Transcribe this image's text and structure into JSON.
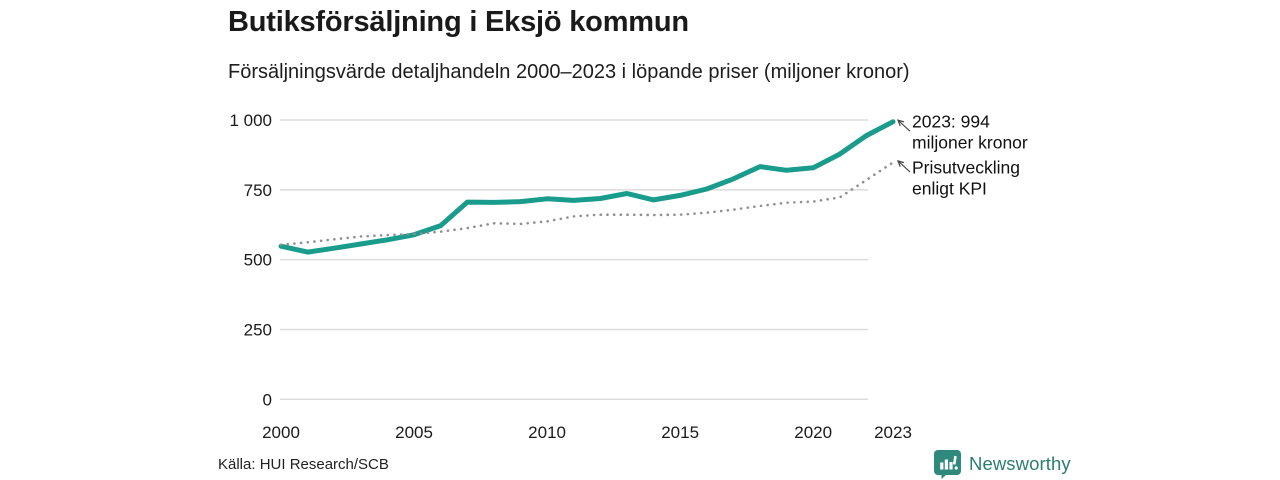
{
  "header": {
    "title": "Butiksförsäljning i Eksjö kommun",
    "subtitle": "Försäljningsvärde detaljhandeln 2000–2023 i löpande priser (miljoner kronor)"
  },
  "footer": {
    "source": "Källa: HUI Research/SCB",
    "brand": "Newsworthy"
  },
  "colors": {
    "sales_line": "#1a9c8c",
    "kpi_line": "#8f8f8f",
    "grid": "#dcdcdc",
    "axis_text": "#1a1a1a",
    "annotation_text": "#111111",
    "annotation_arrow": "#444444",
    "logo_icon": "#2f897c",
    "logo_text": "#2c7d72"
  },
  "chart_data": {
    "type": "line",
    "title": "Butiksförsäljning i Eksjö kommun",
    "subtitle": "Försäljningsvärde detaljhandeln 2000–2023 i löpande priser (miljoner kronor)",
    "xlabel": "",
    "ylabel": "miljoner kronor",
    "x": [
      2000,
      2001,
      2002,
      2003,
      2004,
      2005,
      2006,
      2007,
      2008,
      2009,
      2010,
      2011,
      2012,
      2013,
      2014,
      2015,
      2016,
      2017,
      2018,
      2019,
      2020,
      2021,
      2022,
      2023
    ],
    "series": [
      {
        "name": "Försäljningsvärde detaljhandeln (löpande priser)",
        "style": "solid",
        "color": "#1a9c8c",
        "values": [
          548,
          527,
          541,
          556,
          571,
          589,
          622,
          706,
          705,
          708,
          718,
          712,
          719,
          737,
          714,
          730,
          753,
          789,
          833,
          820,
          829,
          878,
          944,
          994
        ]
      },
      {
        "name": "Prisutveckling enligt KPI",
        "style": "dotted",
        "color": "#8f8f8f",
        "values": [
          553,
          562,
          573,
          583,
          588,
          592,
          600,
          613,
          630,
          628,
          637,
          655,
          661,
          661,
          660,
          661,
          668,
          679,
          692,
          704,
          708,
          723,
          785,
          848
        ]
      }
    ],
    "ylim": [
      0,
      1000
    ],
    "grid": "horizontal",
    "legend_position": "annotations-right",
    "yticks": [
      {
        "value": 0,
        "label": "0"
      },
      {
        "value": 250,
        "label": "250"
      },
      {
        "value": 500,
        "label": "500"
      },
      {
        "value": 750,
        "label": "750"
      },
      {
        "value": 1000,
        "label": "1 000"
      }
    ],
    "xticks": [
      {
        "value": 2000,
        "label": "2000"
      },
      {
        "value": 2005,
        "label": "2005"
      },
      {
        "value": 2010,
        "label": "2010"
      },
      {
        "value": 2015,
        "label": "2015"
      },
      {
        "value": 2020,
        "label": "2020"
      },
      {
        "value": 2023,
        "label": "2023"
      }
    ],
    "annotations": [
      {
        "lines": [
          "2023: 994",
          "miljoner kronor"
        ],
        "series_index": 0,
        "point_year": 2023
      },
      {
        "lines": [
          "Prisutveckling",
          "enligt KPI"
        ],
        "series_index": 1,
        "point_year": 2023
      }
    ]
  }
}
